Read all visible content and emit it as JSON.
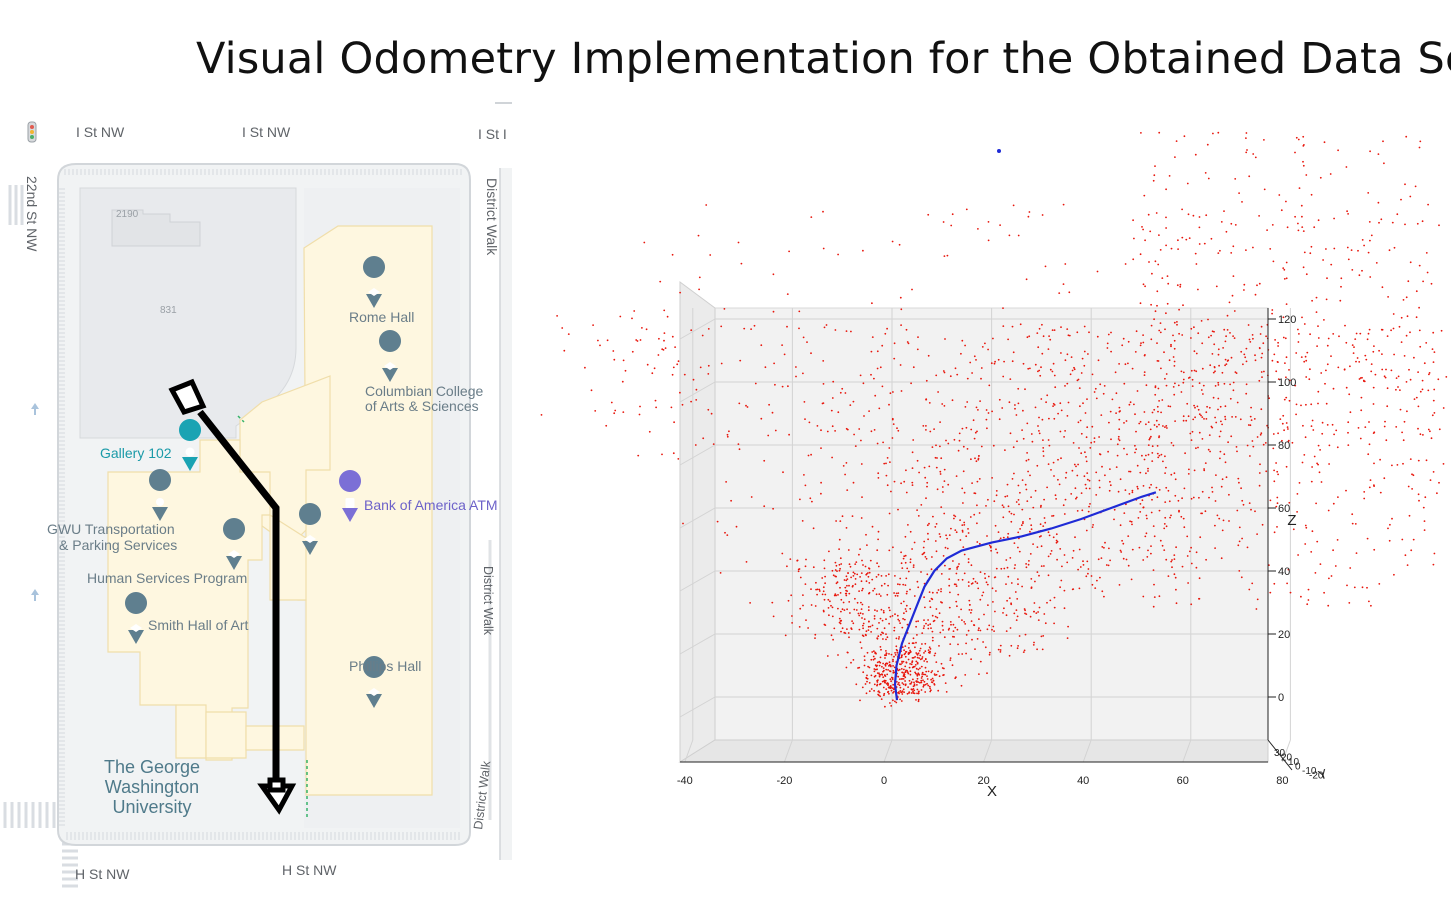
{
  "title": "Visual Odometry Implementation for the Obtained Data Set",
  "map": {
    "streets": {
      "top_left": "I St NW",
      "top_mid": "I St NW",
      "top_right": "I St I",
      "left_vertical": "22nd St NW",
      "bottom_left": "H St NW",
      "bottom_mid": "H St NW",
      "district_walk_top": "District Walk",
      "district_walk_mid": "District Walk",
      "district_walk_bottom": "District Walk"
    },
    "building_numbers": {
      "b2190": "2190",
      "b831": "831"
    },
    "places": {
      "rome_hall": "Rome Hall",
      "columbian_1": "Columbian College",
      "columbian_2": "of Arts & Sciences",
      "gallery": "Gallery 102",
      "boa_atm": "Bank of America ATM",
      "gwu_transport_1": "GWU Transportation",
      "gwu_transport_2": "& Parking Services",
      "human_services": "Human Services Program",
      "smith_hall": "Smith Hall of Art",
      "phillips_hall": "Phillips Hall",
      "gwu_1": "The George",
      "gwu_2": "Washington",
      "gwu_3": "University"
    },
    "icons": [
      "traffic-light-icon",
      "school-pin-icon",
      "gallery-pin-icon",
      "atm-pin-icon",
      "location-pin-icon",
      "path-arrow-icon"
    ]
  },
  "chart_data": {
    "type": "scatter3d",
    "title": "",
    "xlabel": "X",
    "zlabel": "Z",
    "ylabel": "Y",
    "x_ticks": [
      -40,
      -20,
      0,
      20,
      40,
      60,
      80
    ],
    "z_ticks": [
      0,
      20,
      40,
      60,
      80,
      100,
      120
    ],
    "y_tick_labels": [
      "30",
      "20",
      "10",
      "0",
      "-10",
      "-20"
    ],
    "xlim": [
      -40,
      80
    ],
    "zlim": [
      -15,
      120
    ],
    "series": [
      {
        "kind": "points",
        "color": "#e8160c"
      },
      {
        "kind": "trajectory",
        "color": "#1f2bd6",
        "points": [
          [
            1,
            -1
          ],
          [
            0.6,
            4
          ],
          [
            0.9,
            10
          ],
          [
            2,
            17
          ],
          [
            3.5,
            23
          ],
          [
            5,
            29
          ],
          [
            6.5,
            35
          ],
          [
            8.5,
            40
          ],
          [
            11,
            44
          ],
          [
            14,
            46.5
          ],
          [
            20,
            49
          ],
          [
            26,
            51
          ],
          [
            32,
            53.5
          ],
          [
            38,
            56.5
          ],
          [
            44,
            60
          ],
          [
            50,
            63.5
          ],
          [
            53,
            65
          ]
        ]
      }
    ],
    "grid": true
  }
}
